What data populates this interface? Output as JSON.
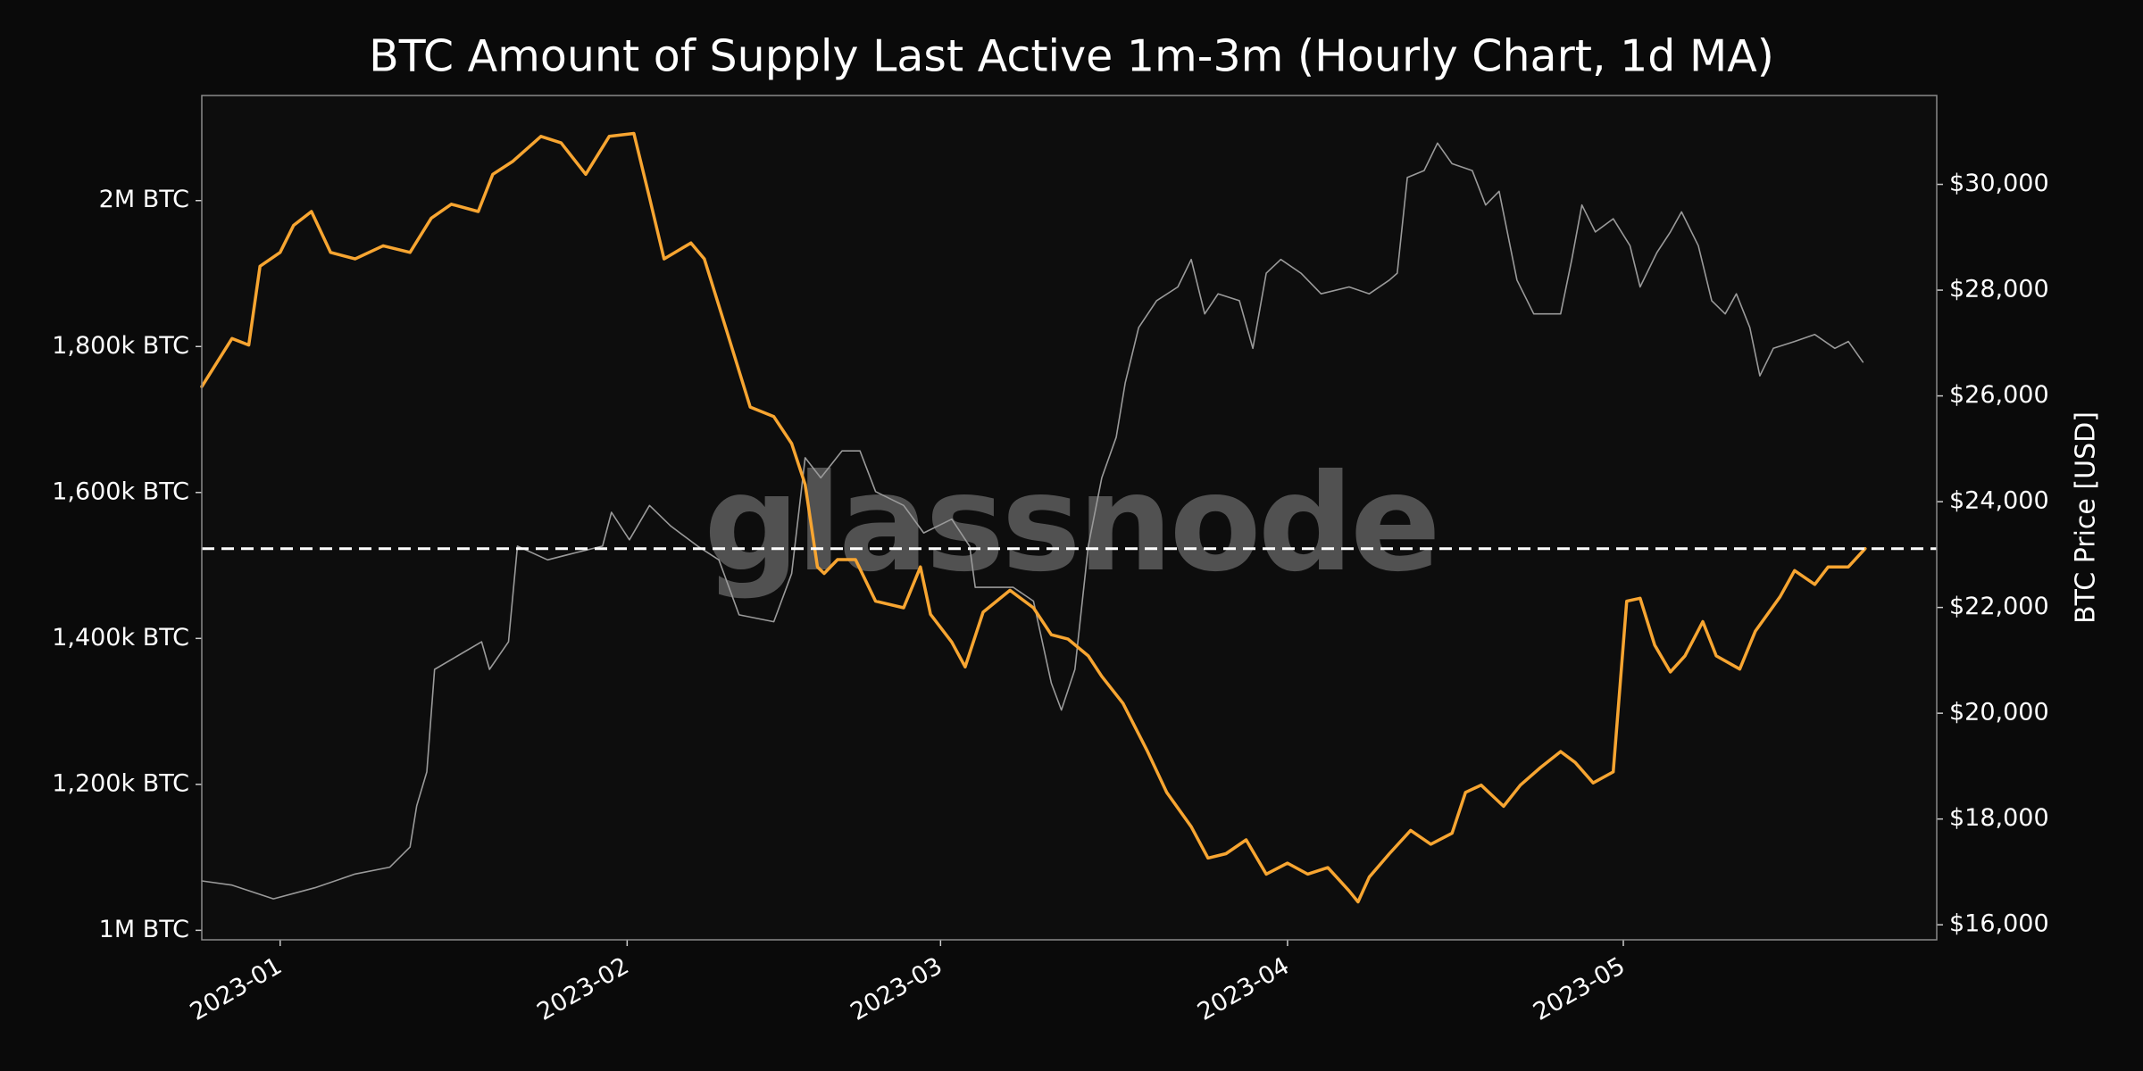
{
  "chart_data": {
    "type": "line",
    "title": "BTC Amount of Supply Last Active 1m-3m (Hourly Chart, 1d MA)",
    "y2_label": "BTC Price [USD]",
    "watermark": "glassnode",
    "grid": false,
    "xlim": [
      -7,
      148
    ],
    "xticks": [
      {
        "value": 0,
        "label": "2023-01"
      },
      {
        "value": 31,
        "label": "2023-02"
      },
      {
        "value": 59,
        "label": "2023-03"
      },
      {
        "value": 90,
        "label": "2023-04"
      },
      {
        "value": 120,
        "label": "2023-05"
      }
    ],
    "ylim": [
      987000,
      2144000
    ],
    "yticks": [
      {
        "value": 1000000,
        "label": "1M BTC"
      },
      {
        "value": 1200000,
        "label": "1,200k BTC"
      },
      {
        "value": 1400000,
        "label": "1,400k BTC"
      },
      {
        "value": 1600000,
        "label": "1,600k BTC"
      },
      {
        "value": 1800000,
        "label": "1,800k BTC"
      },
      {
        "value": 2000000,
        "label": "2M BTC"
      }
    ],
    "y2lim": [
      15716,
      31680
    ],
    "y2ticks": [
      {
        "value": 16000,
        "label": "$16,000"
      },
      {
        "value": 18000,
        "label": "$18,000"
      },
      {
        "value": 20000,
        "label": "$20,000"
      },
      {
        "value": 22000,
        "label": "$22,000"
      },
      {
        "value": 24000,
        "label": "$24,000"
      },
      {
        "value": 26000,
        "label": "$26,000"
      },
      {
        "value": 28000,
        "label": "$28,000"
      },
      {
        "value": 30000,
        "label": "$30,000"
      }
    ],
    "hline": 1523000,
    "series": [
      {
        "color": "#9a9a9a",
        "axis": "y2",
        "x": [
          -7.0,
          -4.3,
          -0.6,
          3.1,
          6.7,
          9.8,
          11.6,
          12.2,
          13.1,
          13.8,
          15.9,
          18.0,
          18.7,
          20.4,
          21.2,
          23.9,
          26.3,
          28.8,
          29.6,
          31.2,
          33.0,
          34.9,
          37.3,
          39.2,
          41.0,
          44.1,
          45.7,
          46.9,
          48.3,
          50.2,
          51.8,
          53.2,
          55.7,
          57.5,
          60.0,
          61.6,
          62.1,
          65.5,
          67.3,
          68.9,
          69.8,
          71.0,
          72.2,
          73.4,
          74.7,
          75.5,
          76.7,
          78.3,
          80.2,
          81.4,
          82.6,
          83.8,
          85.7,
          86.9,
          88.1,
          89.4,
          91.2,
          93.0,
          95.5,
          97.3,
          99.1,
          99.8,
          100.7,
          102.2,
          103.4,
          104.7,
          106.5,
          107.7,
          108.9,
          110.5,
          112.0,
          114.4,
          115.4,
          116.3,
          117.5,
          119.1,
          120.6,
          121.5,
          123.0,
          124.2,
          125.2,
          126.7,
          127.9,
          129.1,
          130.1,
          131.3,
          132.2,
          133.4,
          135.3,
          137.1,
          138.9,
          140.1,
          141.4
        ],
        "values": [
          16830,
          16750,
          16490,
          16700,
          16960,
          17090,
          17470,
          18250,
          18890,
          20830,
          21090,
          21350,
          20830,
          21350,
          23160,
          22900,
          23030,
          23160,
          23800,
          23280,
          23930,
          23540,
          23160,
          22900,
          21860,
          21730,
          22640,
          24830,
          24450,
          24960,
          24960,
          24190,
          23930,
          23410,
          23670,
          23160,
          22380,
          22380,
          22120,
          20570,
          20060,
          20830,
          23160,
          24450,
          25220,
          26250,
          27290,
          27800,
          28060,
          28580,
          27550,
          27930,
          27800,
          26900,
          28320,
          28580,
          28320,
          27930,
          28060,
          27930,
          28190,
          28320,
          30130,
          30260,
          30780,
          30390,
          30260,
          29610,
          29870,
          28190,
          27550,
          27550,
          28580,
          29610,
          29100,
          29350,
          28840,
          28060,
          28710,
          29100,
          29480,
          28840,
          27800,
          27550,
          27930,
          27290,
          26380,
          26900,
          27030,
          27160,
          26900,
          27030,
          26640
        ]
      },
      {
        "color": "#f7a531",
        "x": [
          -7.0,
          -4.3,
          -2.8,
          -1.8,
          0,
          1.2,
          2.8,
          4.5,
          6.7,
          9.2,
          11.6,
          13.5,
          15.3,
          17.7,
          19.0,
          20.8,
          23.3,
          25.1,
          27.3,
          29.4,
          31.6,
          33.0,
          34.3,
          36.7,
          37.9,
          39.8,
          42.0,
          44.1,
          45.7,
          46.9,
          48.0,
          48.6,
          49.8,
          51.4,
          53.2,
          55.7,
          57.2,
          58.1,
          60.0,
          61.2,
          62.8,
          65.2,
          67.3,
          68.9,
          70.4,
          72.2,
          73.4,
          75.3,
          77.5,
          79.2,
          81.4,
          82.9,
          84.5,
          86.3,
          88.1,
          90.0,
          91.8,
          93.6,
          95.5,
          96.3,
          97.3,
          99.1,
          101.0,
          102.8,
          104.7,
          105.9,
          107.3,
          109.3,
          110.8,
          112.6,
          114.4,
          115.7,
          117.3,
          119.1,
          120.3,
          121.5,
          122.8,
          124.2,
          125.5,
          127.1,
          128.3,
          130.4,
          131.8,
          134.0,
          135.3,
          137.1,
          138.3,
          140.1,
          141.6
        ],
        "values": [
          1745000,
          1811000,
          1802000,
          1910000,
          1929000,
          1966000,
          1985000,
          1929000,
          1920000,
          1938000,
          1929000,
          1976000,
          1995000,
          1985000,
          2036000,
          2054000,
          2088000,
          2079000,
          2036000,
          2088000,
          2092000,
          2004000,
          1920000,
          1942000,
          1920000,
          1826000,
          1717000,
          1704000,
          1667000,
          1611000,
          1498000,
          1489000,
          1508000,
          1508000,
          1451000,
          1442000,
          1498000,
          1433000,
          1395000,
          1361000,
          1436000,
          1466000,
          1442000,
          1405000,
          1399000,
          1376000,
          1348000,
          1311000,
          1245000,
          1189000,
          1142000,
          1099000,
          1105000,
          1124000,
          1077000,
          1092000,
          1077000,
          1086000,
          1054000,
          1039000,
          1073000,
          1105000,
          1137000,
          1118000,
          1133000,
          1189000,
          1199000,
          1170000,
          1199000,
          1223000,
          1245000,
          1230000,
          1202000,
          1217000,
          1451000,
          1455000,
          1391000,
          1354000,
          1376000,
          1423000,
          1376000,
          1358000,
          1410000,
          1457000,
          1493000,
          1474000,
          1498000,
          1498000,
          1523000
        ]
      }
    ]
  }
}
